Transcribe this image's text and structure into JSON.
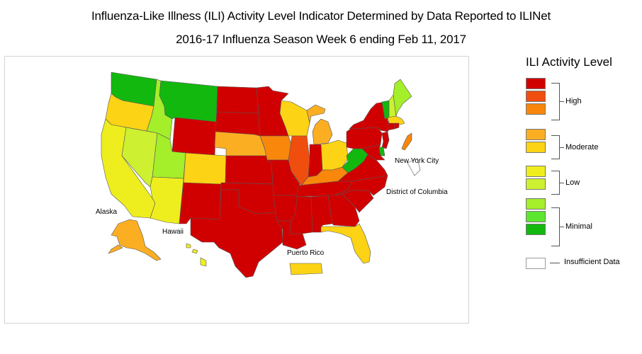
{
  "title_line1": "Influenza-Like Illness (ILI) Activity Level Indicator Determined by Data Reported to ILINet",
  "title_line2": "2016-17 Influenza Season Week 6 ending Feb 11, 2017",
  "map_labels": {
    "alaska": "Alaska",
    "hawaii": "Hawaii",
    "puerto_rico": "Puerto Rico",
    "nyc": "New York City",
    "dc": "District of Columbia"
  },
  "legend": {
    "title": "ILI Activity Level",
    "groups": [
      "High",
      "Moderate",
      "Low",
      "Minimal",
      "Insufficient Data"
    ],
    "levels": [
      {
        "level": 10,
        "color": "#d10000"
      },
      {
        "level": 9,
        "color": "#f04e0f"
      },
      {
        "level": 8,
        "color": "#f8870c"
      },
      {
        "level": 7,
        "color": "#fbae22"
      },
      {
        "level": 6,
        "color": "#fcd315"
      },
      {
        "level": 5,
        "color": "#eeee1e"
      },
      {
        "level": 4,
        "color": "#cdf031"
      },
      {
        "level": 3,
        "color": "#a4ee2a"
      },
      {
        "level": 2,
        "color": "#5ce62f"
      },
      {
        "level": 1,
        "color": "#13b80f"
      },
      {
        "level": 0,
        "color": "#ffffff"
      }
    ]
  },
  "states": [
    {
      "name": "Washington",
      "level": 1
    },
    {
      "name": "Oregon",
      "level": 6
    },
    {
      "name": "California",
      "level": 5
    },
    {
      "name": "Nevada",
      "level": 4
    },
    {
      "name": "Idaho",
      "level": 3
    },
    {
      "name": "Montana",
      "level": 1
    },
    {
      "name": "Wyoming",
      "level": 10
    },
    {
      "name": "Utah",
      "level": 3
    },
    {
      "name": "Arizona",
      "level": 5
    },
    {
      "name": "Colorado",
      "level": 6
    },
    {
      "name": "New Mexico",
      "level": 10
    },
    {
      "name": "North Dakota",
      "level": 10
    },
    {
      "name": "South Dakota",
      "level": 10
    },
    {
      "name": "Nebraska",
      "level": 7
    },
    {
      "name": "Kansas",
      "level": 10
    },
    {
      "name": "Oklahoma",
      "level": 10
    },
    {
      "name": "Texas",
      "level": 10
    },
    {
      "name": "Minnesota",
      "level": 10
    },
    {
      "name": "Iowa",
      "level": 8
    },
    {
      "name": "Missouri",
      "level": 10
    },
    {
      "name": "Arkansas",
      "level": 10
    },
    {
      "name": "Louisiana",
      "level": 10
    },
    {
      "name": "Wisconsin",
      "level": 6
    },
    {
      "name": "Illinois",
      "level": 9
    },
    {
      "name": "Michigan",
      "level": 7
    },
    {
      "name": "Indiana",
      "level": 10
    },
    {
      "name": "Ohio",
      "level": 6
    },
    {
      "name": "Kentucky",
      "level": 8
    },
    {
      "name": "Tennessee",
      "level": 10
    },
    {
      "name": "Mississippi",
      "level": 10
    },
    {
      "name": "Alabama",
      "level": 10
    },
    {
      "name": "Georgia",
      "level": 10
    },
    {
      "name": "Florida",
      "level": 6
    },
    {
      "name": "South Carolina",
      "level": 10
    },
    {
      "name": "North Carolina",
      "level": 10
    },
    {
      "name": "Virginia",
      "level": 10
    },
    {
      "name": "West Virginia",
      "level": 1
    },
    {
      "name": "Pennsylvania",
      "level": 10
    },
    {
      "name": "New York",
      "level": 10
    },
    {
      "name": "New Jersey",
      "level": 10
    },
    {
      "name": "Delaware",
      "level": 1
    },
    {
      "name": "Maryland",
      "level": 10
    },
    {
      "name": "Vermont",
      "level": 1
    },
    {
      "name": "New Hampshire",
      "level": 4
    },
    {
      "name": "Maine",
      "level": 3
    },
    {
      "name": "Massachusetts",
      "level": 6
    },
    {
      "name": "Connecticut",
      "level": 10
    },
    {
      "name": "Rhode Island",
      "level": 10
    },
    {
      "name": "Alaska",
      "level": 7
    },
    {
      "name": "Hawaii",
      "level": 5
    },
    {
      "name": "Puerto Rico",
      "level": 6
    },
    {
      "name": "New York City",
      "level": 8
    },
    {
      "name": "District of Columbia",
      "level": 0
    }
  ]
}
